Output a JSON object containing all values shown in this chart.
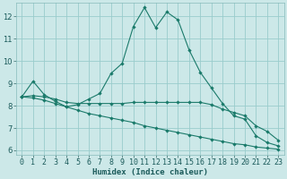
{
  "xlabel": "Humidex (Indice chaleur)",
  "bg_color": "#cce8e8",
  "grid_color": "#99cccc",
  "line_color": "#1a7a6a",
  "xlim": [
    -0.5,
    23.5
  ],
  "ylim": [
    5.8,
    12.6
  ],
  "yticks": [
    6,
    7,
    8,
    9,
    10,
    11,
    12
  ],
  "xticks": [
    0,
    1,
    2,
    3,
    4,
    5,
    6,
    7,
    8,
    9,
    10,
    11,
    12,
    13,
    14,
    15,
    16,
    17,
    18,
    19,
    20,
    21,
    22,
    23
  ],
  "s1_x": [
    0,
    1,
    2,
    3,
    4,
    5,
    6,
    7,
    8,
    9,
    10,
    11,
    12,
    13,
    14,
    15,
    16,
    17,
    18,
    19,
    20,
    21,
    22,
    23
  ],
  "s1_y": [
    8.4,
    9.1,
    8.5,
    8.2,
    7.95,
    8.05,
    8.3,
    8.55,
    9.45,
    9.9,
    11.55,
    12.4,
    11.5,
    12.2,
    11.85,
    10.5,
    9.5,
    8.8,
    8.1,
    7.55,
    7.4,
    6.65,
    6.35,
    6.2
  ],
  "s2_x": [
    0,
    1,
    2,
    3,
    4,
    5,
    6,
    7,
    8,
    9,
    10,
    11,
    12,
    13,
    14,
    15,
    16,
    17,
    18,
    19,
    20,
    21,
    22,
    23
  ],
  "s2_y": [
    8.4,
    8.45,
    8.4,
    8.3,
    8.15,
    8.1,
    8.1,
    8.1,
    8.1,
    8.1,
    8.15,
    8.15,
    8.15,
    8.15,
    8.15,
    8.15,
    8.15,
    8.05,
    7.85,
    7.7,
    7.55,
    7.1,
    6.85,
    6.45
  ],
  "s3_x": [
    0,
    1,
    2,
    3,
    4,
    5,
    6,
    7,
    8,
    9,
    10,
    11,
    12,
    13,
    14,
    15,
    16,
    17,
    18,
    19,
    20,
    21,
    22,
    23
  ],
  "s3_y": [
    8.4,
    8.35,
    8.25,
    8.1,
    7.95,
    7.8,
    7.65,
    7.55,
    7.45,
    7.35,
    7.25,
    7.1,
    7.0,
    6.9,
    6.8,
    6.7,
    6.6,
    6.5,
    6.4,
    6.3,
    6.25,
    6.15,
    6.1,
    6.05
  ]
}
